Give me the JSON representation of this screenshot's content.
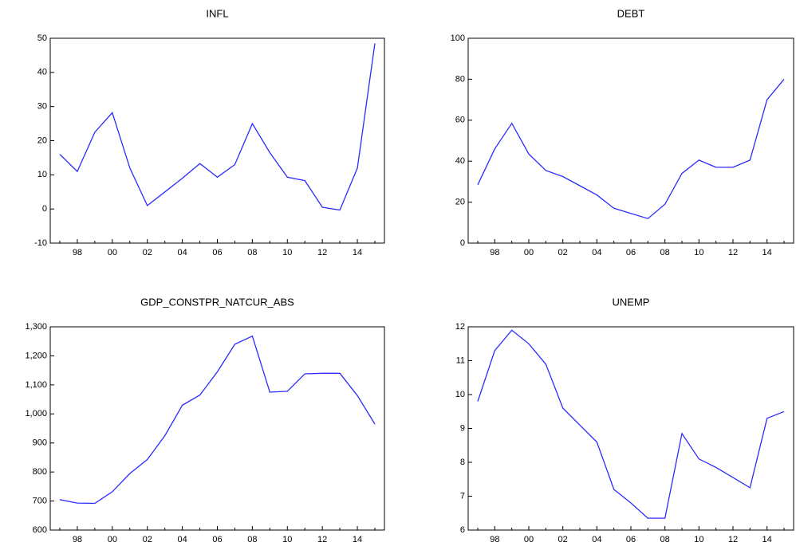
{
  "chart_data": [
    {
      "type": "line",
      "title": "INFL",
      "categories": [
        null,
        "98",
        null,
        "00",
        null,
        "02",
        null,
        "04",
        null,
        "06",
        null,
        "08",
        null,
        "10",
        null,
        "12",
        null,
        "14",
        null
      ],
      "values": [
        16,
        11,
        22.5,
        28.2,
        12,
        1,
        5,
        9,
        13.3,
        9.3,
        13,
        25,
        16.5,
        9.3,
        8.3,
        0.5,
        -0.3,
        12,
        48.5
      ],
      "color": "#2b2bff",
      "ylim": [
        -10,
        50
      ],
      "yticks": [
        -10,
        0,
        10,
        20,
        30,
        40,
        50
      ]
    },
    {
      "type": "line",
      "title": "DEBT",
      "categories": [
        null,
        "98",
        null,
        "00",
        null,
        "02",
        null,
        "04",
        null,
        "06",
        null,
        "08",
        null,
        "10",
        null,
        "12",
        null,
        "14",
        null
      ],
      "values": [
        28.5,
        46,
        58.5,
        43.5,
        35.5,
        32.5,
        28,
        23.5,
        17,
        14.5,
        12,
        19,
        34,
        40.5,
        37,
        37,
        40.5,
        70,
        80
      ],
      "color": "#2b2bff",
      "ylim": [
        0,
        100
      ],
      "yticks": [
        0,
        20,
        40,
        60,
        80,
        100
      ]
    },
    {
      "type": "line",
      "title": "GDP_CONSTPR_NATCUR_ABS",
      "categories": [
        null,
        "98",
        null,
        "00",
        null,
        "02",
        null,
        "04",
        null,
        "06",
        null,
        "08",
        null,
        "10",
        null,
        "12",
        null,
        "14",
        null
      ],
      "values": [
        705,
        693,
        692,
        732,
        795,
        843,
        925,
        1030,
        1065,
        1145,
        1240,
        1268,
        1075,
        1078,
        1138,
        1140,
        1140,
        1063,
        965
      ],
      "color": "#2b2bff",
      "ylim": [
        600,
        1300
      ],
      "yticks": [
        600,
        700,
        800,
        900,
        {
          "value": 1000,
          "label": "1,000"
        },
        {
          "value": 1100,
          "label": "1,100"
        },
        {
          "value": 1200,
          "label": "1,200"
        },
        {
          "value": 1300,
          "label": "1,300"
        }
      ]
    },
    {
      "type": "line",
      "title": "UNEMP",
      "categories": [
        null,
        "98",
        null,
        "00",
        null,
        "02",
        null,
        "04",
        null,
        "06",
        null,
        "08",
        null,
        "10",
        null,
        "12",
        null,
        "14",
        null
      ],
      "values": [
        9.8,
        11.3,
        11.9,
        11.5,
        10.9,
        9.6,
        9.1,
        8.6,
        7.2,
        6.8,
        6.35,
        6.35,
        8.85,
        8.1,
        7.85,
        7.55,
        7.25,
        9.3,
        9.5
      ],
      "color": "#2b2bff",
      "ylim": [
        6,
        12
      ],
      "yticks": [
        6,
        7,
        8,
        9,
        10,
        11,
        12
      ]
    }
  ]
}
